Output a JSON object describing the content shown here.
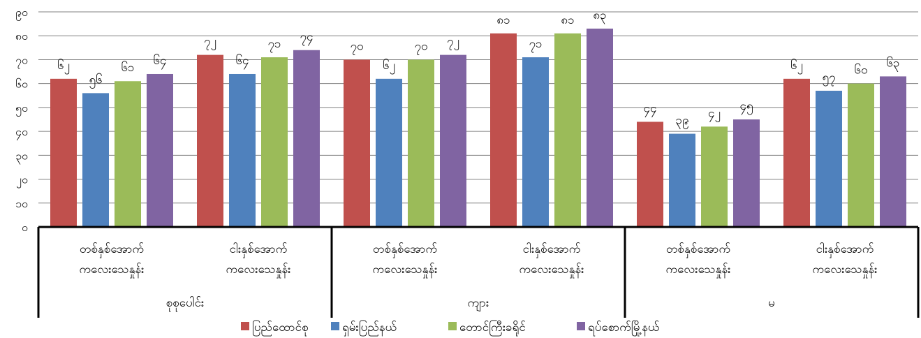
{
  "chart_data": {
    "type": "bar",
    "ylim": [
      0,
      90
    ],
    "grid": true,
    "legend_position": "bottom",
    "yticks": [
      {
        "value": 0,
        "label": "၀"
      },
      {
        "value": 10,
        "label": "၁၀"
      },
      {
        "value": 20,
        "label": "၂၀"
      },
      {
        "value": 30,
        "label": "၃၀"
      },
      {
        "value": 40,
        "label": "၄၀"
      },
      {
        "value": 50,
        "label": "၅၀"
      },
      {
        "value": 60,
        "label": "၆၀"
      },
      {
        "value": 70,
        "label": "၇၀"
      },
      {
        "value": 80,
        "label": "၈၀"
      },
      {
        "value": 90,
        "label": "၉၀"
      }
    ],
    "groups": [
      {
        "name": "စုစုပေါင်း",
        "categories": [
          {
            "line1": "တစ်နှစ်အောက်",
            "line2": "ကလေးသေနှုန်း"
          },
          {
            "line1": "ငါးနှစ်အောက်",
            "line2": "ကလေးသေနှုန်း"
          }
        ]
      },
      {
        "name": "ကျား",
        "categories": [
          {
            "line1": "တစ်နှစ်အောက်",
            "line2": "ကလေးသေနှုန်း"
          },
          {
            "line1": "ငါးနှစ်အောက်",
            "line2": "ကလေးသေနှုန်း"
          }
        ]
      },
      {
        "name": "မ",
        "categories": [
          {
            "line1": "တစ်နှစ်အောက်",
            "line2": "ကလေးသေနှုန်း"
          },
          {
            "line1": "ငါးနှစ်အောက်",
            "line2": "ကလေးသေနှုန်း"
          }
        ]
      }
    ],
    "series": [
      {
        "name": "ပြည်ထောင်စု",
        "color": "#c0504d",
        "values": [
          62,
          72,
          70,
          81,
          44,
          62
        ],
        "labels": [
          "၆၂",
          "၇၂",
          "၇၀",
          "၈၁",
          "၄၄",
          "၆၂"
        ]
      },
      {
        "name": "ရှမ်းပြည်နယ်",
        "color": "#4f81bd",
        "values": [
          56,
          64,
          62,
          71,
          39,
          57
        ],
        "labels": [
          "၅၆",
          "၆၄",
          "၆၂",
          "၇၁",
          "၃၉",
          "၅၇"
        ]
      },
      {
        "name": "တောင်ကြီးခရိုင်",
        "color": "#9bbb59",
        "values": [
          61,
          71,
          70,
          81,
          42,
          60
        ],
        "labels": [
          "၆၁",
          "၇၁",
          "၇၀",
          "၈၁",
          "၄၂",
          "၆၀"
        ]
      },
      {
        "name": "ရပ်စောက်မြို့နယ်",
        "color": "#8064a2",
        "values": [
          64,
          74,
          72,
          83,
          45,
          63
        ],
        "labels": [
          "၆၄",
          "၇၄",
          "၇၂",
          "၈၃",
          "၄၅",
          "၆၃"
        ]
      }
    ]
  }
}
